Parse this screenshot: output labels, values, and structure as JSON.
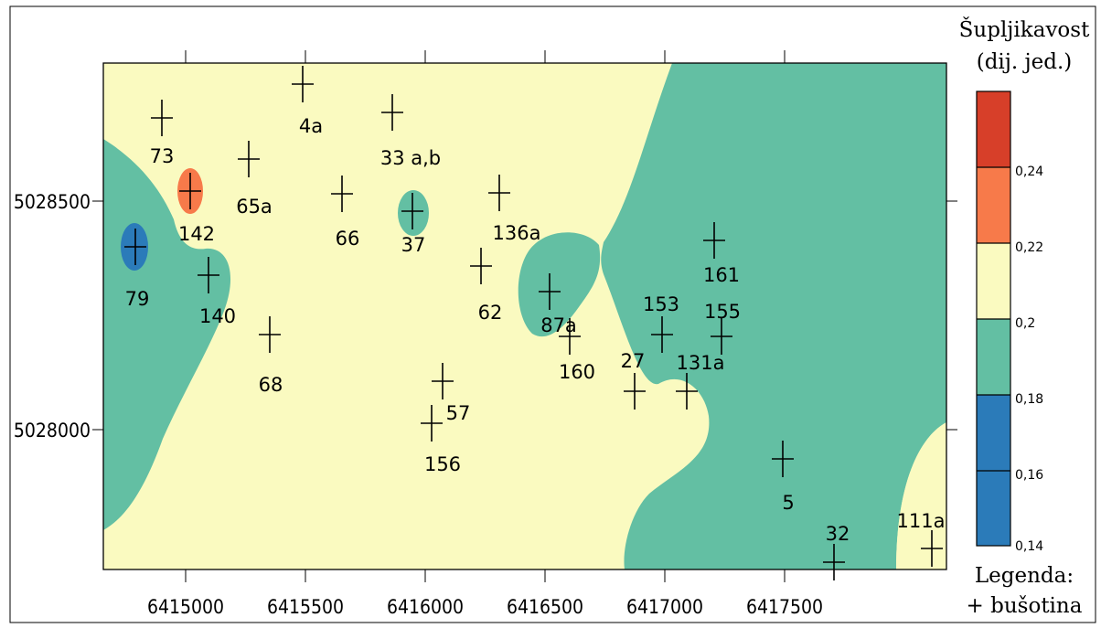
{
  "map": {
    "colors": {
      "background": "#ffffff",
      "frame": "#000000",
      "class_0_14_0_16": "#2b7bb9",
      "class_0_18_0_20": "#63bfa3",
      "class_0_20_0_22": "#fafac0",
      "class_0_22_0_24": "#f77a4a",
      "class_0_24_plus": "#d73f29"
    },
    "axes": {
      "x_ticks": [
        "6415000",
        "6415500",
        "6416000",
        "6416500",
        "6417000",
        "6417500"
      ],
      "y_ticks": [
        "5028500",
        "5028000"
      ]
    },
    "boreholes": [
      {
        "label": "73"
      },
      {
        "label": "4a"
      },
      {
        "label": "33 a,b"
      },
      {
        "label": "65a"
      },
      {
        "label": "142"
      },
      {
        "label": "66"
      },
      {
        "label": "37"
      },
      {
        "label": "136a"
      },
      {
        "label": "79"
      },
      {
        "label": "140"
      },
      {
        "label": "62"
      },
      {
        "label": "87a"
      },
      {
        "label": "161"
      },
      {
        "label": "153"
      },
      {
        "label": "155"
      },
      {
        "label": "68"
      },
      {
        "label": "160"
      },
      {
        "label": "27"
      },
      {
        "label": "131a"
      },
      {
        "label": "57"
      },
      {
        "label": "156"
      },
      {
        "label": "5"
      },
      {
        "label": "32"
      },
      {
        "label": "111a"
      }
    ],
    "legend": {
      "title_line1": "Šupljikavost",
      "title_line2": "(dij. jed.)",
      "class_labels": [
        "0,24",
        "0,22",
        "0,2",
        "0,18",
        "0,16",
        "0,14"
      ],
      "footer_line1": "Legenda:",
      "footer_line2": "+ bušotina"
    }
  }
}
